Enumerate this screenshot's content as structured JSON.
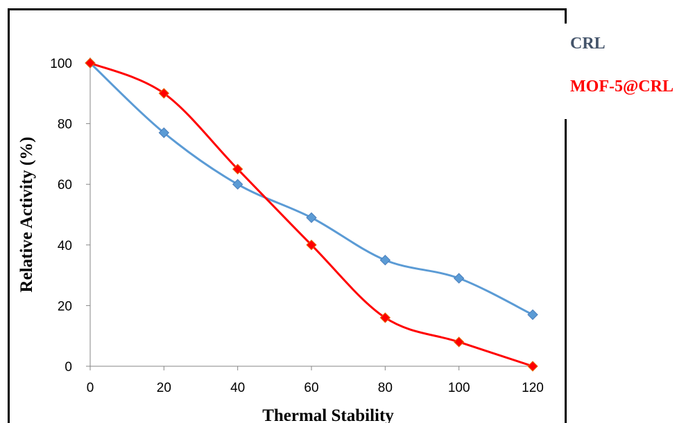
{
  "chart_data": {
    "type": "line",
    "title": "",
    "xlabel": "Thermal Stability",
    "ylabel": "Relative Activity (%)",
    "x": [
      0,
      20,
      40,
      60,
      80,
      100,
      120
    ],
    "xlim": [
      0,
      120
    ],
    "ylim": [
      0,
      100
    ],
    "x_ticks": [
      0,
      20,
      40,
      60,
      80,
      100,
      120
    ],
    "y_ticks": [
      0,
      20,
      40,
      60,
      80,
      100
    ],
    "grid": false,
    "legend_placement": "top-right",
    "series": [
      {
        "name": "CRL",
        "values": [
          100,
          77,
          60,
          49,
          35,
          29,
          17
        ],
        "color": "#5b9bd5",
        "marker": "diamond",
        "legend_color": "#44546a"
      },
      {
        "name": "MOF-5@CRL",
        "values": [
          100,
          90,
          65,
          40,
          16,
          8,
          0
        ],
        "color": "#ff0000",
        "marker": "diamond",
        "legend_color": "#ff0000"
      }
    ]
  }
}
